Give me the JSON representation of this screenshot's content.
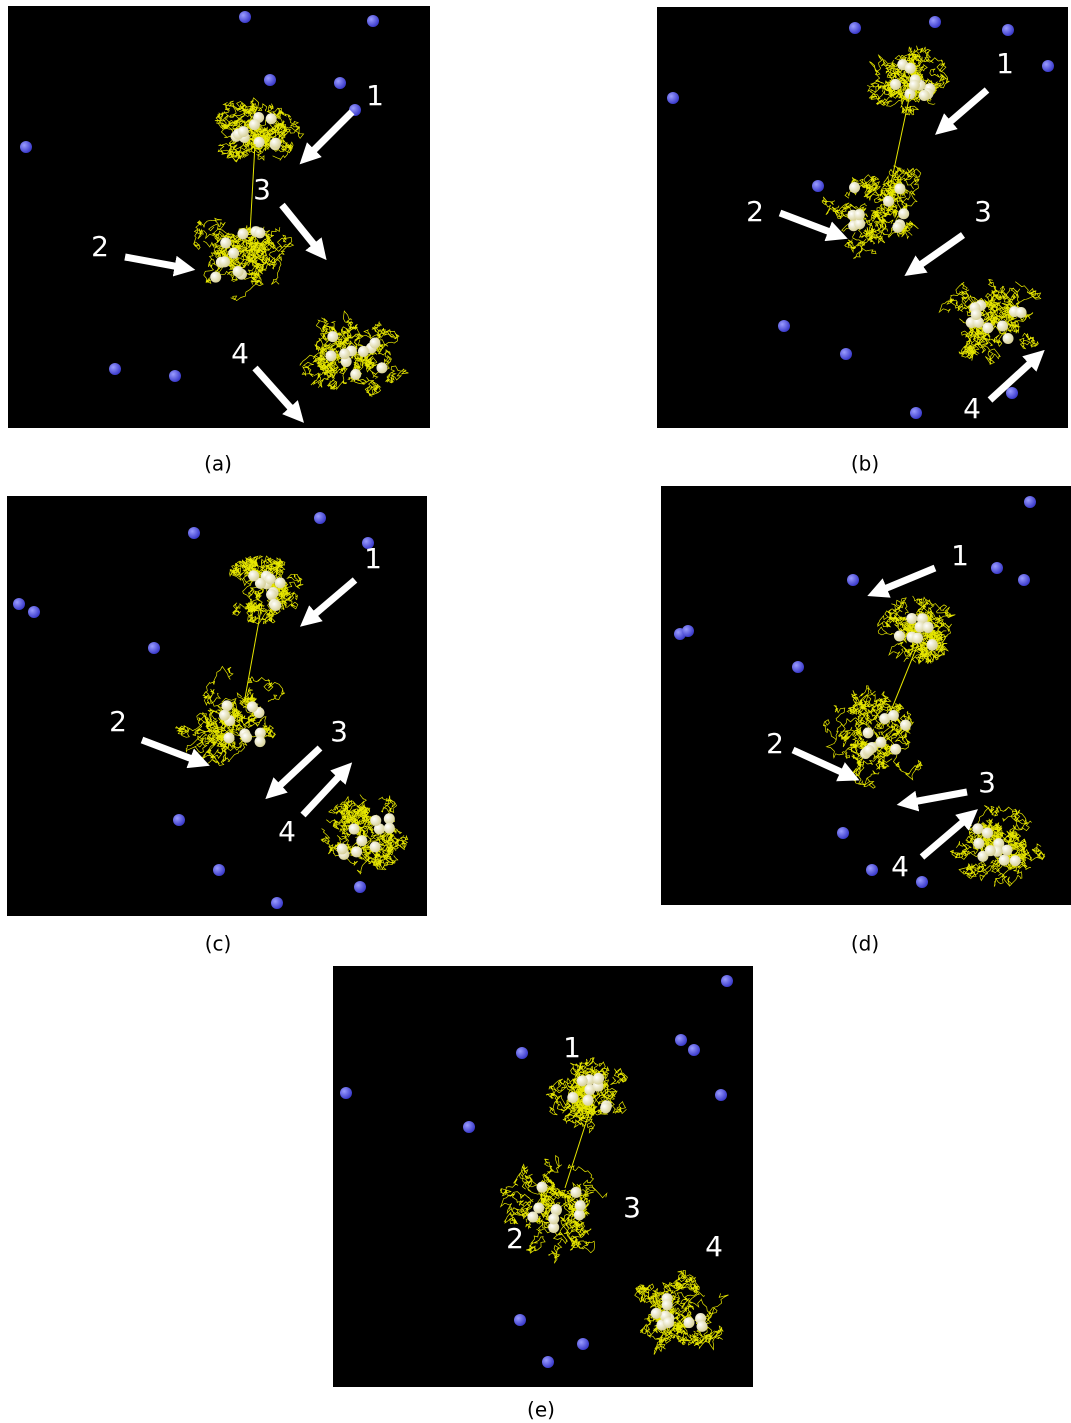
{
  "panels": [
    {
      "caption": "(a)",
      "labels": [
        "1",
        "2",
        "3",
        "4"
      ]
    },
    {
      "caption": "(b)",
      "labels": [
        "1",
        "2",
        "3",
        "4"
      ]
    },
    {
      "caption": "(c)",
      "labels": [
        "1",
        "2",
        "3",
        "4"
      ]
    },
    {
      "caption": "(d)",
      "labels": [
        "1",
        "2",
        "3",
        "4"
      ]
    },
    {
      "caption": "(e)",
      "labels": [
        "1",
        "2",
        "3",
        "4"
      ]
    }
  ]
}
